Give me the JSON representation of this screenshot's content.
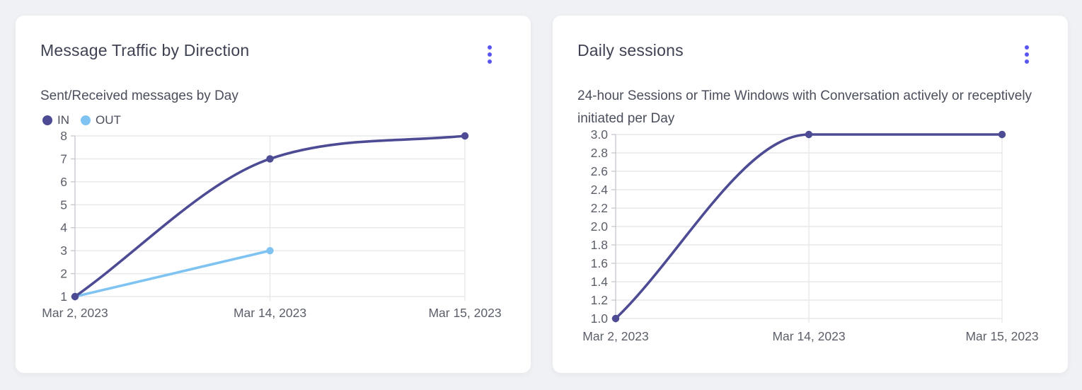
{
  "colors": {
    "accent": "#5956F0",
    "series_in": "#4D4B94",
    "series_out": "#7FC3F3",
    "grid": "#e7e8ea",
    "axis": "#c9cad1",
    "tick_text": "#5b5f69",
    "card_bg": "#ffffff",
    "page_bg": "#f0f1f4"
  },
  "cards": [
    {
      "title": "Message Traffic by Direction",
      "subtitle": "Sent/Received messages by Day",
      "menu_icon": "kebab-menu-icon"
    },
    {
      "title": "Daily sessions",
      "subtitle": "24-hour Sessions or Time Windows with Conversation actively or receptively initiated per Day",
      "menu_icon": "kebab-menu-icon"
    }
  ],
  "chart_data": [
    {
      "type": "line",
      "title": "Message Traffic by Direction",
      "subtitle": "Sent/Received messages by Day",
      "categories": [
        "Mar 2, 2023",
        "Mar 14, 2023",
        "Mar 15, 2023"
      ],
      "series": [
        {
          "name": "IN",
          "values": [
            1,
            7,
            8
          ],
          "color": "#4D4B94"
        },
        {
          "name": "OUT",
          "values": [
            1,
            3,
            null
          ],
          "color": "#7FC3F3"
        }
      ],
      "y_ticks": [
        8,
        7,
        6,
        5,
        4,
        3,
        2,
        1
      ],
      "ylim": [
        1,
        8
      ],
      "grid": true,
      "legend_position": "top-left",
      "curve": "monotone"
    },
    {
      "type": "line",
      "title": "Daily sessions",
      "subtitle": "24-hour Sessions or Time Windows with Conversation actively or receptively initiated per Day",
      "categories": [
        "Mar 2, 2023",
        "Mar 14, 2023",
        "Mar 15, 2023"
      ],
      "series": [
        {
          "name": "Daily sessions",
          "values": [
            1.0,
            3.0,
            3.0
          ],
          "color": "#4D4B94"
        }
      ],
      "y_ticks": [
        "3.0",
        "2.8",
        "2.6",
        "2.4",
        "2.2",
        "2.0",
        "1.8",
        "1.6",
        "1.4",
        "1.2",
        "1.0"
      ],
      "ylim": [
        1.0,
        3.0
      ],
      "grid": true,
      "legend_position": "none",
      "curve": "monotone"
    }
  ]
}
